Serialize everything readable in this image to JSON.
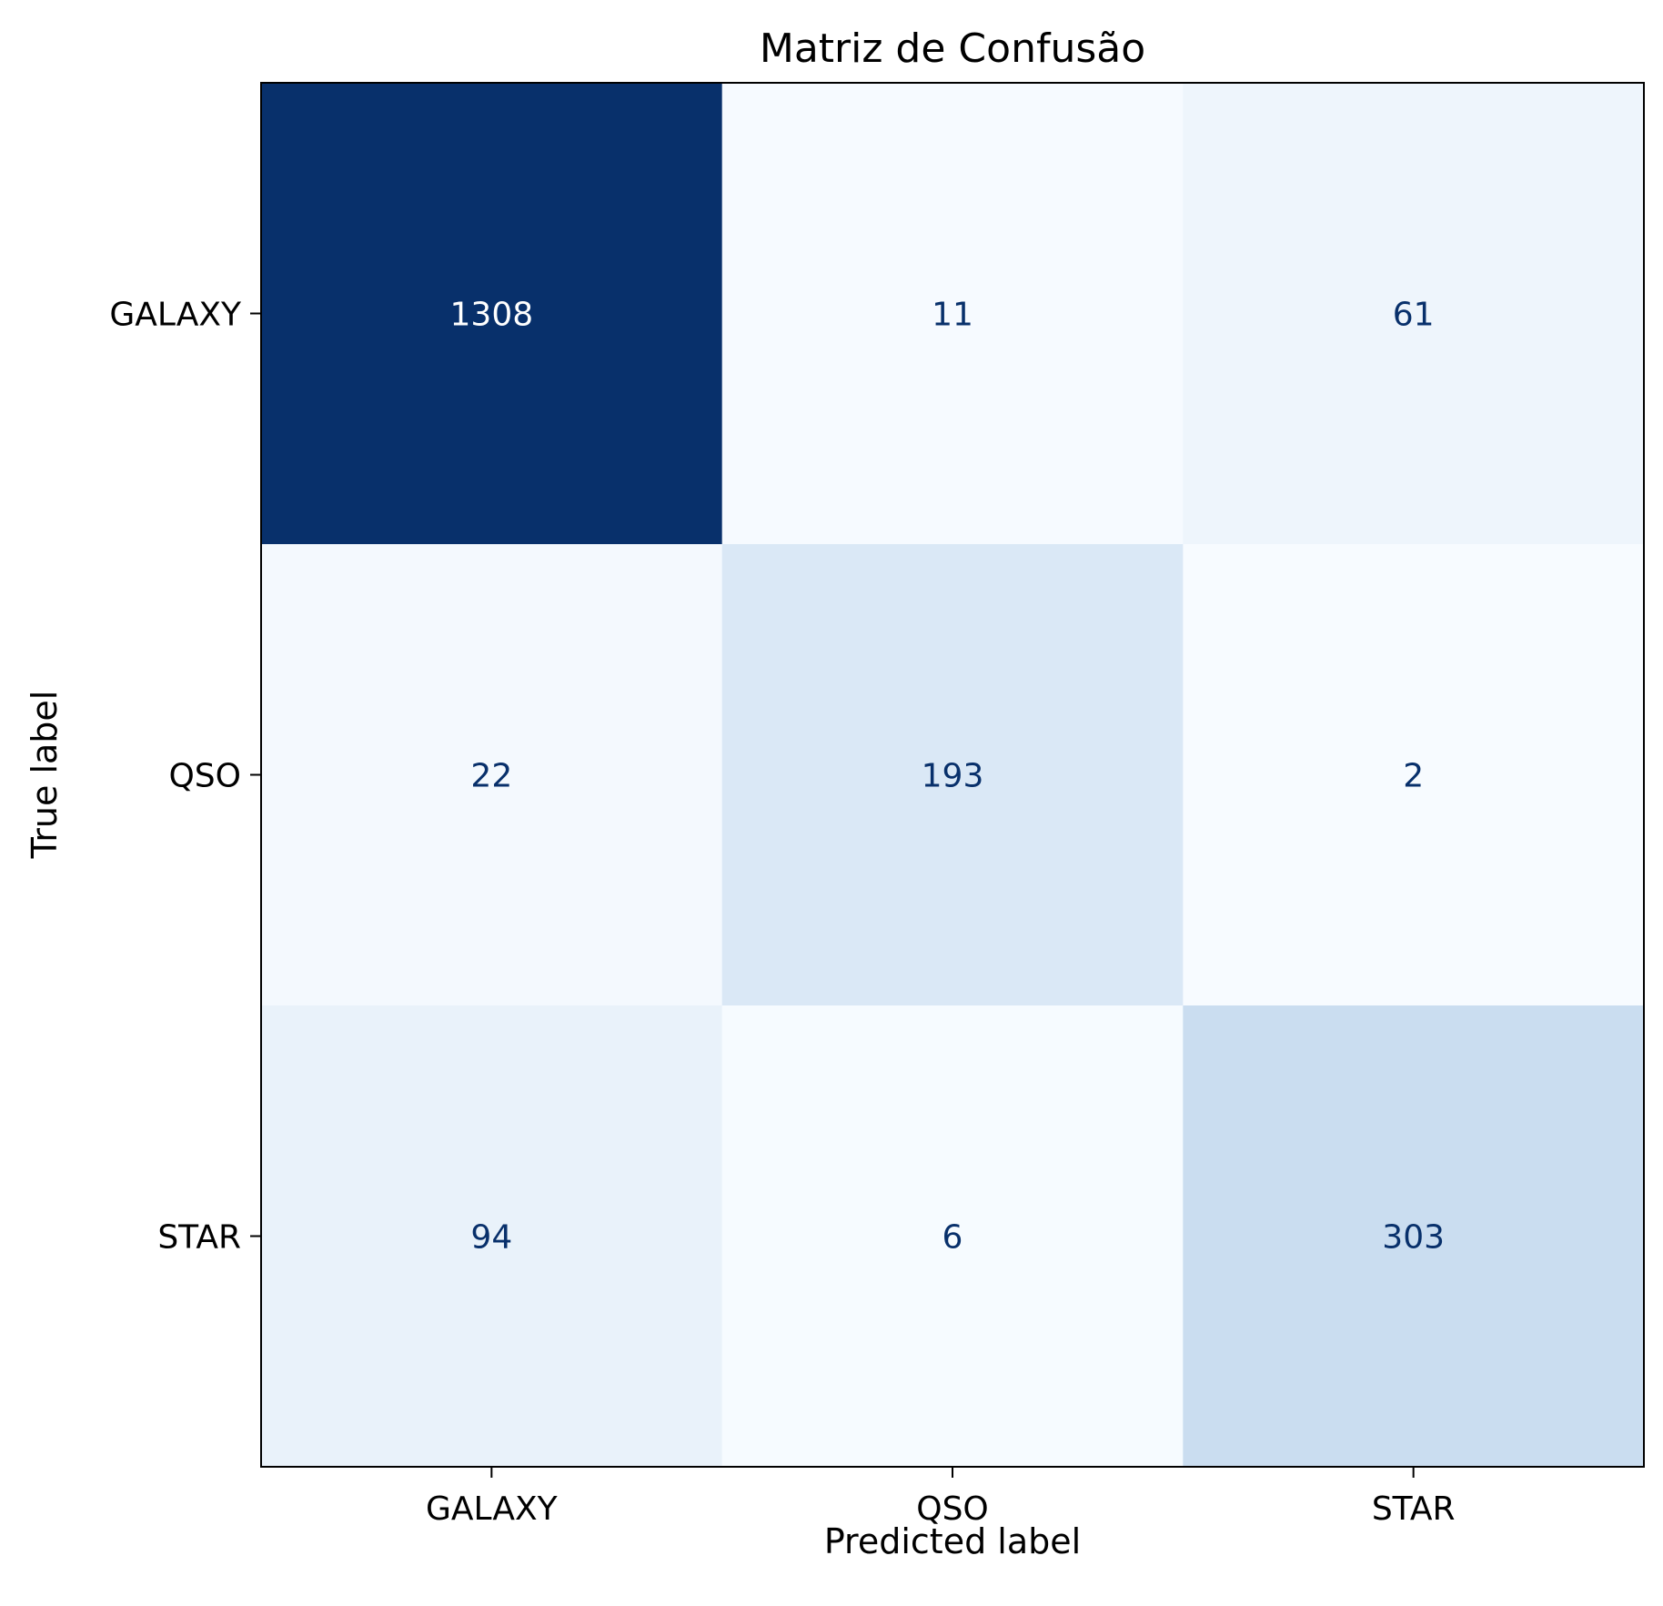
{
  "chart_data": {
    "type": "heatmap",
    "title": "Matriz de Confusão",
    "xlabel": "Predicted label",
    "ylabel": "True label",
    "x_categories": [
      "GALAXY",
      "QSO",
      "STAR"
    ],
    "y_categories": [
      "GALAXY",
      "QSO",
      "STAR"
    ],
    "values": [
      [
        1308,
        11,
        61
      ],
      [
        22,
        193,
        2
      ],
      [
        94,
        6,
        303
      ]
    ],
    "colormap": "Blues",
    "colors": {
      "low": "#f7fbff",
      "high": "#08306b",
      "text_dark": "#08306b",
      "text_light": "#ffffff"
    }
  }
}
